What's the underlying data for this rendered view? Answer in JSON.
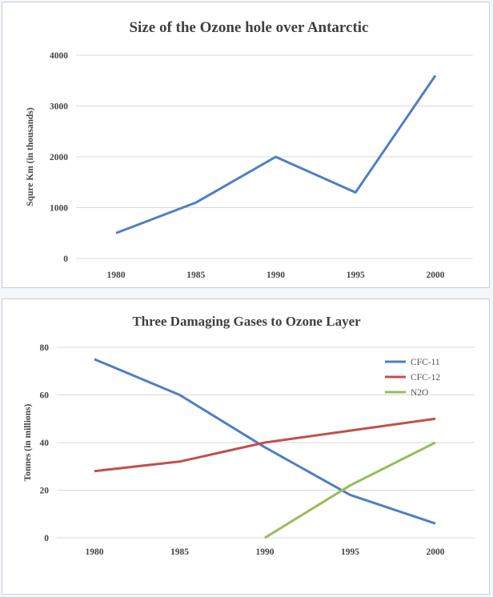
{
  "chart_data": [
    {
      "type": "line",
      "title": "Size of the Ozone hole over Antarctic",
      "xlabel": "",
      "ylabel": "Squre Km (in thousands)",
      "categories": [
        "1980",
        "1985",
        "1990",
        "1995",
        "2000"
      ],
      "yticks": [
        "0",
        "1000",
        "2000",
        "3000",
        "4000"
      ],
      "ylim": [
        0,
        4000
      ],
      "grid": true,
      "legend": "none",
      "series": [
        {
          "values": [
            500,
            1100,
            2000,
            1300,
            3600
          ],
          "color": "#4e7fc3"
        }
      ]
    },
    {
      "type": "line",
      "title": "Three Damaging Gases to Ozone Layer",
      "xlabel": "",
      "ylabel": "Tonnes (in millions)",
      "categories": [
        "1980",
        "1985",
        "1990",
        "1995",
        "2000"
      ],
      "yticks": [
        "0",
        "20",
        "40",
        "60",
        "80"
      ],
      "ylim": [
        0,
        80
      ],
      "grid": true,
      "legend": "top-right",
      "series": [
        {
          "name": "CFC-11",
          "values": [
            75,
            60,
            38,
            18,
            6
          ],
          "color": "#4e7fc3"
        },
        {
          "name": "CFC-12",
          "values": [
            28,
            32,
            40,
            45,
            50
          ],
          "color": "#c0504d"
        },
        {
          "name": "N2O",
          "values": [
            null,
            null,
            0,
            22,
            40
          ],
          "color": "#9bbb59"
        }
      ]
    }
  ]
}
